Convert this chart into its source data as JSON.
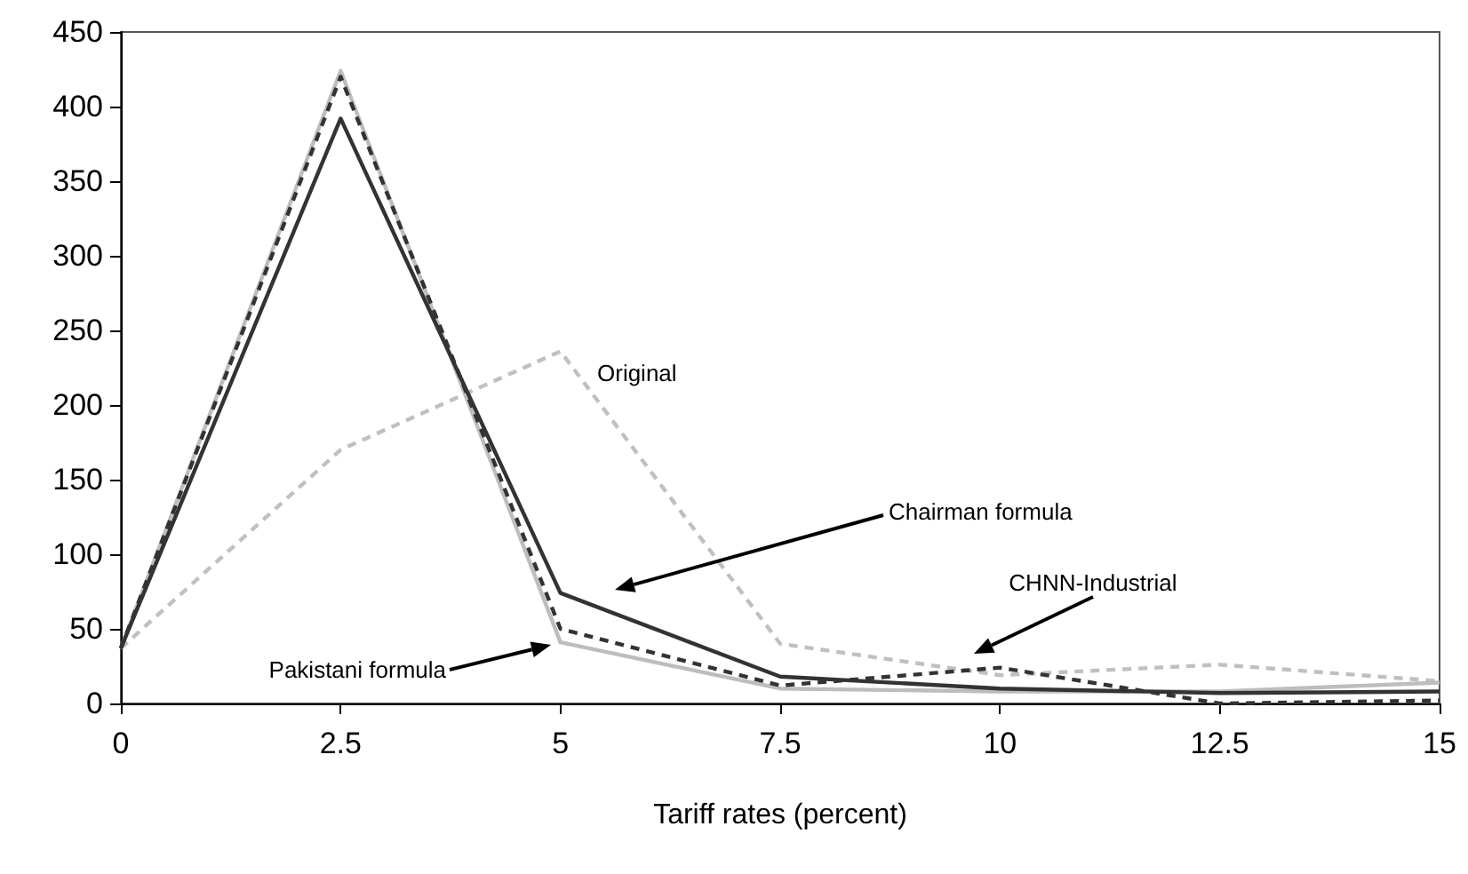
{
  "chart_data": {
    "type": "line",
    "xlabel": "Tariff rates (percent)",
    "x": [
      0,
      2.5,
      5,
      7.5,
      10,
      12.5,
      15
    ],
    "series": [
      {
        "color": "#c0c0c0",
        "line_style": "dashed",
        "values": [
          37,
          170,
          236,
          40,
          19,
          26,
          15
        ]
      },
      {
        "color": "#bdbdbd",
        "line_style": "solid",
        "values": [
          37,
          424,
          41,
          10,
          8,
          8,
          14
        ]
      },
      {
        "color": "#333333",
        "line_style": "dashed",
        "values": [
          37,
          420,
          50,
          12,
          24,
          0,
          2
        ]
      },
      {
        "color": "#333333",
        "line_style": "solid",
        "values": [
          37,
          392,
          74,
          18,
          10,
          7,
          8
        ]
      }
    ],
    "xlim": [
      0,
      15
    ],
    "xticks": [
      0,
      2.5,
      5,
      7.5,
      10,
      12.5,
      15
    ],
    "ylim": [
      0,
      450
    ],
    "yticks": [
      0,
      50,
      100,
      150,
      200,
      250,
      300,
      350,
      400,
      450
    ],
    "grid": false,
    "marker": "none",
    "annotations": [
      "Original",
      "Chairman formula",
      "CHNN-Industrial",
      "Pakistani formula"
    ]
  }
}
